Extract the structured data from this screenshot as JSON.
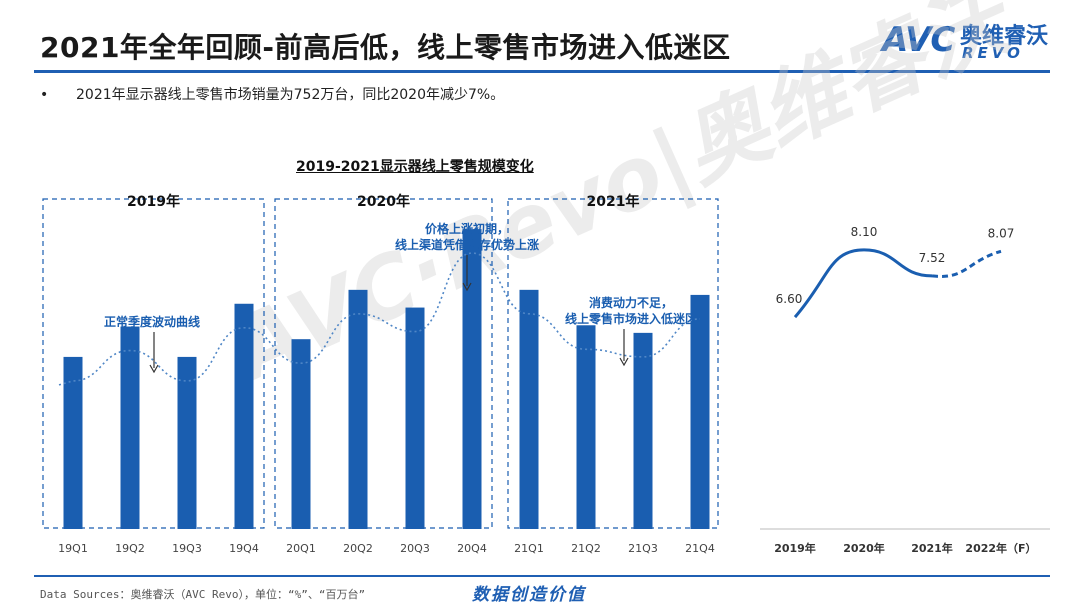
{
  "header": {
    "title": "2021年全年回顾-前高后低，线上零售市场进入低迷区",
    "logo_text": "AVC",
    "logo_cn": "奥维睿沃",
    "logo_revo": "REVO",
    "brand_color": "#1f5fb3"
  },
  "bullet": {
    "marker": "•",
    "text": "2021年显示器线上零售市场销量为752万台，同比2020年减少7%。"
  },
  "watermark": "AVC·Revo|奥维睿沃",
  "chart_data": [
    {
      "type": "bar",
      "title": "2019-2021显示器线上零售规模变化",
      "categories": [
        "19Q1",
        "19Q2",
        "19Q3",
        "19Q4",
        "20Q1",
        "20Q2",
        "20Q3",
        "20Q4",
        "21Q1",
        "21Q2",
        "21Q3",
        "21Q4"
      ],
      "values": [
        136,
        160,
        136,
        178,
        150,
        189,
        175,
        237,
        189,
        161,
        155,
        185
      ],
      "bar_color": "#1a5eb0",
      "trend_line": "dotted",
      "groups": [
        {
          "label": "2019年",
          "from": 0,
          "to": 3
        },
        {
          "label": "2020年",
          "from": 4,
          "to": 7
        },
        {
          "label": "2021年",
          "from": 8,
          "to": 11
        }
      ],
      "annotations": [
        {
          "lines": [
            "正常季度波动曲线"
          ],
          "target_index": 1.5
        },
        {
          "lines": [
            "价格上涨初期，",
            "线上渠道凭借库存优势上涨"
          ],
          "target_index": 7
        },
        {
          "lines": [
            "消费动力不足，",
            "线上零售市场进入低迷区"
          ],
          "target_index": 9.8
        }
      ],
      "ylim": [
        0,
        250
      ]
    },
    {
      "type": "line",
      "categories": [
        "2019年",
        "2020年",
        "2021年",
        "2022年（F）"
      ],
      "values": [
        6.6,
        8.1,
        7.52,
        8.07
      ],
      "labels": [
        "6.60",
        "8.10",
        "7.52",
        "8.07"
      ],
      "line_color": "#1a5eb0",
      "forecast_from_index": 2,
      "ylim": [
        6.0,
        8.5
      ]
    }
  ],
  "footer": {
    "source": "Data Sources：奥维睿沃（AVC Revo），单位：“%”、“百万台”",
    "slogan": "数据创造价值"
  }
}
